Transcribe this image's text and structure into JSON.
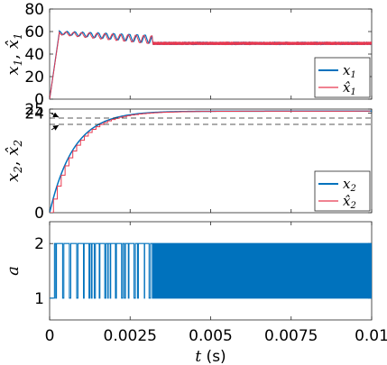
{
  "colors": {
    "blue": "#0072BD",
    "red": "#E8384F",
    "axis": "#262626",
    "dash": "#222222"
  },
  "xaxis": {
    "ticks": [
      0,
      0.0025,
      0.005,
      0.0075,
      0.01
    ],
    "tick_labels": [
      "0",
      "0.0025",
      "0.005",
      "0.0075",
      "0.01"
    ],
    "label": "t (s)"
  },
  "chart_data": [
    {
      "type": "line",
      "ylabel": "x1, x̂1",
      "xlim": [
        0,
        0.01
      ],
      "ylim": [
        0,
        80
      ],
      "yticks": [
        0,
        20,
        40,
        60,
        80
      ],
      "ytick_labels": [
        "0",
        "20",
        "40",
        "60",
        "80"
      ],
      "legend": {
        "position": "bottom-right",
        "entries": [
          "x1",
          "x̂1"
        ]
      },
      "series": [
        {
          "name": "x1",
          "color": "#0072BD",
          "x": [
            0,
            0.0003,
            0.0006,
            0.0009,
            0.0012,
            0.0015,
            0.0018,
            0.0021,
            0.0024,
            0.0027,
            0.003,
            0.0032,
            0.005,
            0.0075,
            0.01
          ],
          "y": [
            0,
            59,
            57,
            56,
            55,
            55,
            54,
            53,
            53,
            53,
            53,
            49,
            49,
            49,
            49
          ],
          "oscillation_after_0.0032": [
            48,
            51
          ]
        },
        {
          "name": "x̂1",
          "color": "#E8384F",
          "x": [
            0,
            0.0003,
            0.0006,
            0.0009,
            0.0012,
            0.0015,
            0.0018,
            0.0021,
            0.0024,
            0.0027,
            0.003,
            0.0032,
            0.005,
            0.0075,
            0.01
          ],
          "y": [
            0,
            58,
            57,
            56,
            55,
            54,
            54,
            53,
            53,
            52,
            52,
            49,
            49,
            49,
            49
          ],
          "oscillation_after_0.0032": [
            48,
            51
          ]
        }
      ]
    },
    {
      "type": "line",
      "ylabel": "x2, x̂2",
      "xlim": [
        0,
        0.01
      ],
      "ylim": [
        0,
        25
      ],
      "yticks": [
        0,
        24,
        25
      ],
      "ytick_labels": [
        "0",
        "24",
        "25"
      ],
      "annotations": [
        "dashed reference lines near 24 and 25 with arrows"
      ],
      "legend": {
        "position": "bottom-right",
        "entries": [
          "x2",
          "x̂2"
        ]
      },
      "series": [
        {
          "name": "x2",
          "color": "#0072BD",
          "x": [
            0,
            0.0005,
            0.001,
            0.0015,
            0.002,
            0.0025,
            0.003,
            0.0035,
            0.005,
            0.0075,
            0.01
          ],
          "y": [
            0,
            13.5,
            19.0,
            21.8,
            23.2,
            24.0,
            24.4,
            24.5,
            24.5,
            24.5,
            24.5
          ]
        },
        {
          "name": "x̂2",
          "color": "#E8384F",
          "x": [
            0,
            0.0005,
            0.001,
            0.0015,
            0.002,
            0.0025,
            0.003,
            0.0035,
            0.005,
            0.0075,
            0.01
          ],
          "y": [
            0,
            12.5,
            18.5,
            21.5,
            23.0,
            23.9,
            24.4,
            24.5,
            24.5,
            24.5,
            24.5
          ]
        }
      ]
    },
    {
      "type": "line",
      "ylabel": "a",
      "xlim": [
        0,
        0.01
      ],
      "ylim": [
        0.6,
        2.4
      ],
      "yticks": [
        1,
        2
      ],
      "ytick_labels": [
        "1",
        "2"
      ],
      "series": [
        {
          "name": "a",
          "color": "#0072BD",
          "values_between": [
            1,
            2
          ],
          "switching_start": 0.00015,
          "dense_switching_after": 0.0032
        }
      ]
    }
  ]
}
